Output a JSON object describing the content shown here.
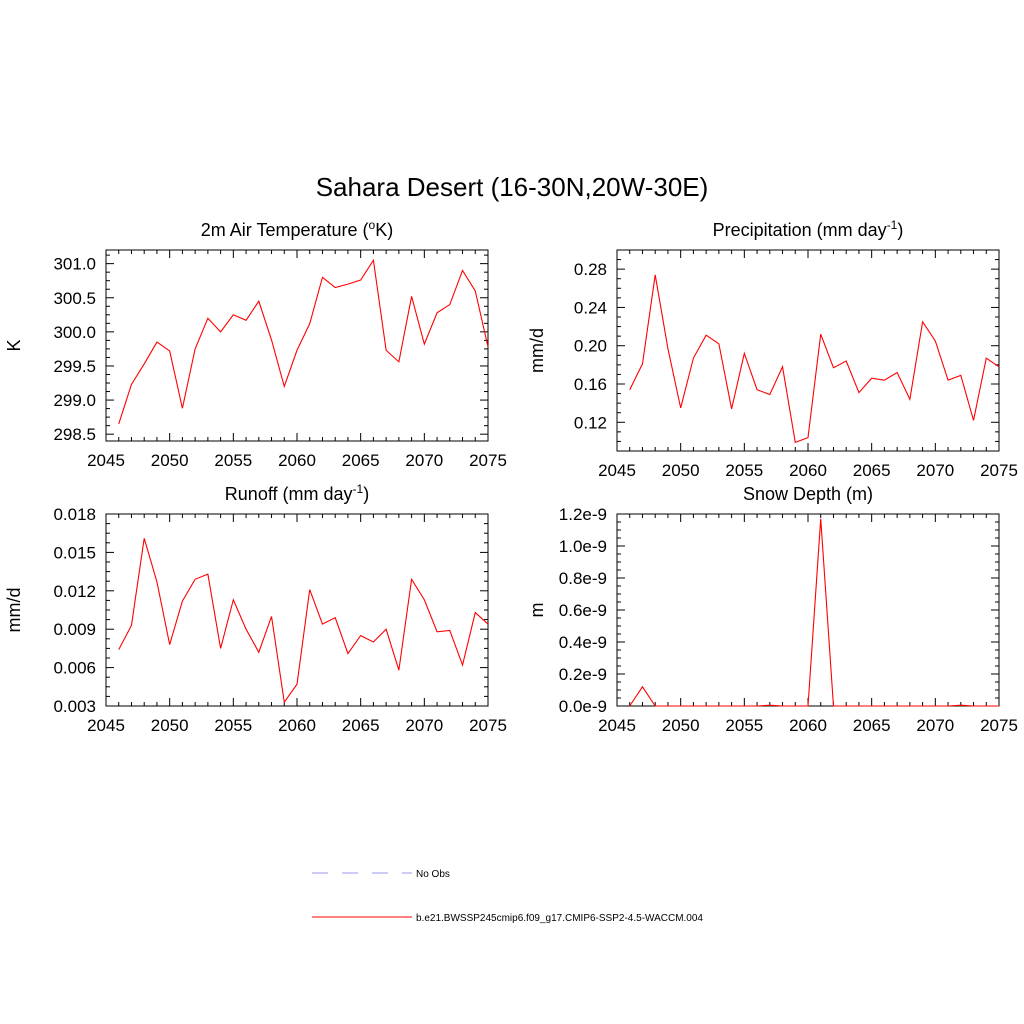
{
  "title": "Sahara Desert (16-30N,20W-30E)",
  "legend": [
    {
      "label": "No Obs",
      "color": "#9999ee",
      "dash": "dashed"
    },
    {
      "label": "b.e21.BWSSP245cmip6.f09_g17.CMIP6-SSP2-4.5-WACCM.004",
      "color": "#ff0000",
      "dash": "solid"
    }
  ],
  "chart_data": [
    {
      "type": "line",
      "title_main": "2m Air Temperature (",
      "title_sup": "o",
      "title_end": "K)",
      "ylabel": "K",
      "xlim": [
        2045,
        2075
      ],
      "ylim": [
        298.4,
        301.2
      ],
      "xticks": [
        2045,
        2050,
        2055,
        2060,
        2065,
        2070,
        2075
      ],
      "yticks": [
        "298.5",
        "299.0",
        "299.5",
        "300.0",
        "300.5",
        "301.0"
      ],
      "x": [
        2046,
        2047,
        2048,
        2049,
        2050,
        2051,
        2052,
        2053,
        2054,
        2055,
        2056,
        2057,
        2058,
        2059,
        2060,
        2061,
        2062,
        2063,
        2064,
        2065,
        2066,
        2067,
        2068,
        2069,
        2070,
        2071,
        2072,
        2073,
        2074,
        2075
      ],
      "series": [
        {
          "color": "#ff0000",
          "values": [
            298.65,
            299.23,
            299.53,
            299.85,
            299.72,
            298.88,
            299.75,
            300.2,
            300.0,
            300.25,
            300.17,
            300.45,
            299.88,
            299.2,
            299.73,
            300.12,
            300.8,
            300.65,
            300.7,
            300.76,
            301.05,
            299.73,
            299.56,
            300.52,
            299.82,
            300.28,
            300.4,
            300.9,
            300.6,
            299.78
          ]
        }
      ]
    },
    {
      "type": "line",
      "title_main": "Precipitation (mm day",
      "title_sup": "-1",
      "title_end": ")",
      "ylabel": "mm/d",
      "xlim": [
        2045,
        2075
      ],
      "ylim": [
        0.09,
        0.3
      ],
      "xticks": [
        2045,
        2050,
        2055,
        2060,
        2065,
        2070,
        2075
      ],
      "yticks": [
        "0.12",
        "0.16",
        "0.20",
        "0.24",
        "0.28"
      ],
      "x": [
        2046,
        2047,
        2048,
        2049,
        2050,
        2051,
        2052,
        2053,
        2054,
        2055,
        2056,
        2057,
        2058,
        2059,
        2060,
        2061,
        2062,
        2063,
        2064,
        2065,
        2066,
        2067,
        2068,
        2069,
        2070,
        2071,
        2072,
        2073,
        2074,
        2075
      ],
      "series": [
        {
          "color": "#ff0000",
          "values": [
            0.154,
            0.181,
            0.274,
            0.197,
            0.135,
            0.187,
            0.211,
            0.202,
            0.134,
            0.192,
            0.154,
            0.149,
            0.178,
            0.099,
            0.104,
            0.212,
            0.177,
            0.184,
            0.151,
            0.166,
            0.164,
            0.172,
            0.144,
            0.225,
            0.205,
            0.164,
            0.169,
            0.122,
            0.187,
            0.178
          ]
        }
      ]
    },
    {
      "type": "line",
      "title_main": "Runoff (mm day",
      "title_sup": "-1",
      "title_end": ")",
      "ylabel": "mm/d",
      "xlim": [
        2045,
        2075
      ],
      "ylim": [
        0.003,
        0.018
      ],
      "xticks": [
        2045,
        2050,
        2055,
        2060,
        2065,
        2070,
        2075
      ],
      "yticks": [
        "0.003",
        "0.006",
        "0.009",
        "0.012",
        "0.015",
        "0.018"
      ],
      "x": [
        2046,
        2047,
        2048,
        2049,
        2050,
        2051,
        2052,
        2053,
        2054,
        2055,
        2056,
        2057,
        2058,
        2059,
        2060,
        2061,
        2062,
        2063,
        2064,
        2065,
        2066,
        2067,
        2068,
        2069,
        2070,
        2071,
        2072,
        2073,
        2074,
        2075
      ],
      "series": [
        {
          "color": "#ff0000",
          "values": [
            0.0074,
            0.0093,
            0.0161,
            0.0127,
            0.0078,
            0.0112,
            0.0129,
            0.0133,
            0.0075,
            0.0113,
            0.009,
            0.0072,
            0.01,
            0.0033,
            0.0047,
            0.0121,
            0.0094,
            0.0099,
            0.0071,
            0.0085,
            0.008,
            0.009,
            0.0058,
            0.0129,
            0.0113,
            0.0088,
            0.0089,
            0.0062,
            0.0103,
            0.0094
          ]
        }
      ]
    },
    {
      "type": "line",
      "title_main": "Snow Depth (m)",
      "title_sup": "",
      "title_end": "",
      "ylabel": "m",
      "xlim": [
        2045,
        2075
      ],
      "ylim": [
        0,
        1.2
      ],
      "xticks": [
        2045,
        2050,
        2055,
        2060,
        2065,
        2070,
        2075
      ],
      "yticks": [
        "0.0e-9",
        "0.2e-9",
        "0.4e-9",
        "0.6e-9",
        "0.8e-9",
        "1.0e-9",
        "1.2e-9"
      ],
      "x": [
        2046,
        2047,
        2048,
        2049,
        2050,
        2051,
        2052,
        2053,
        2054,
        2055,
        2056,
        2057,
        2058,
        2059,
        2060,
        2061,
        2062,
        2063,
        2064,
        2065,
        2066,
        2067,
        2068,
        2069,
        2070,
        2071,
        2072,
        2073,
        2074,
        2075
      ],
      "series": [
        {
          "color": "#ff0000",
          "values": [
            0,
            0.12,
            0,
            0,
            0,
            0,
            0,
            0,
            0,
            0,
            0,
            0.005,
            0,
            0,
            0,
            1.17,
            0,
            0,
            0,
            0,
            0,
            0,
            0,
            0,
            0,
            0,
            0.005,
            0,
            0,
            0
          ]
        }
      ]
    }
  ]
}
